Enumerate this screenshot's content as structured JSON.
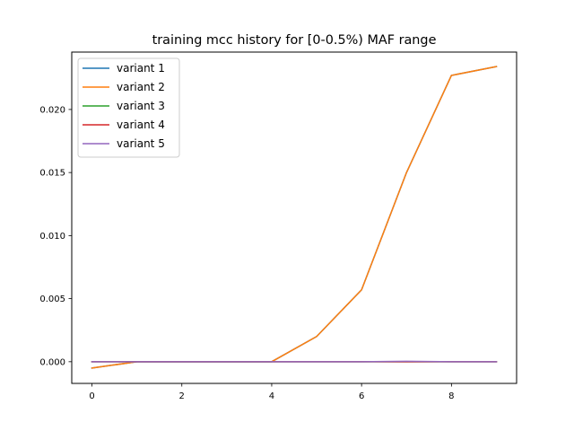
{
  "chart_data": {
    "type": "line",
    "title": "training mcc history for [0-0.5%) MAF range",
    "xlabel": "",
    "ylabel": "",
    "xlim": [
      -0.45,
      9.45
    ],
    "ylim": [
      -0.00172,
      0.02455
    ],
    "xticks": [
      0,
      2,
      4,
      6,
      8
    ],
    "xtick_labels": [
      "0",
      "2",
      "4",
      "6",
      "8"
    ],
    "yticks": [
      0.0,
      0.005,
      0.01,
      0.015,
      0.02
    ],
    "ytick_labels": [
      "0.000",
      "0.005",
      "0.010",
      "0.015",
      "0.020"
    ],
    "grid": false,
    "legend_position": "upper-left",
    "x": [
      0,
      1,
      2,
      3,
      4,
      5,
      6,
      7,
      8,
      9
    ],
    "series": [
      {
        "name": "variant 1",
        "color": "#1f77b4",
        "values": [
          -0.0005,
          0.0,
          0.0,
          0.0,
          0.0,
          0.002,
          0.0057,
          0.015,
          0.0227,
          0.0234
        ]
      },
      {
        "name": "variant 2",
        "color": "#ff7f0e",
        "values": [
          -0.0005,
          0.0,
          0.0,
          0.0,
          0.0,
          0.002,
          0.0057,
          0.015,
          0.0227,
          0.0234
        ]
      },
      {
        "name": "variant 3",
        "color": "#2ca02c",
        "values": [
          0.0,
          0.0,
          0.0,
          0.0,
          0.0,
          0.0,
          0.0,
          0.0,
          0.0,
          0.0
        ]
      },
      {
        "name": "variant 4",
        "color": "#d62728",
        "values": [
          0.0,
          0.0,
          0.0,
          0.0,
          0.0,
          0.0,
          0.0,
          0.0,
          0.0,
          0.0
        ]
      },
      {
        "name": "variant 5",
        "color": "#9467bd",
        "values": [
          0.0,
          0.0,
          0.0,
          0.0,
          0.0,
          0.0,
          0.0,
          3e-05,
          0.0,
          0.0
        ]
      }
    ]
  }
}
